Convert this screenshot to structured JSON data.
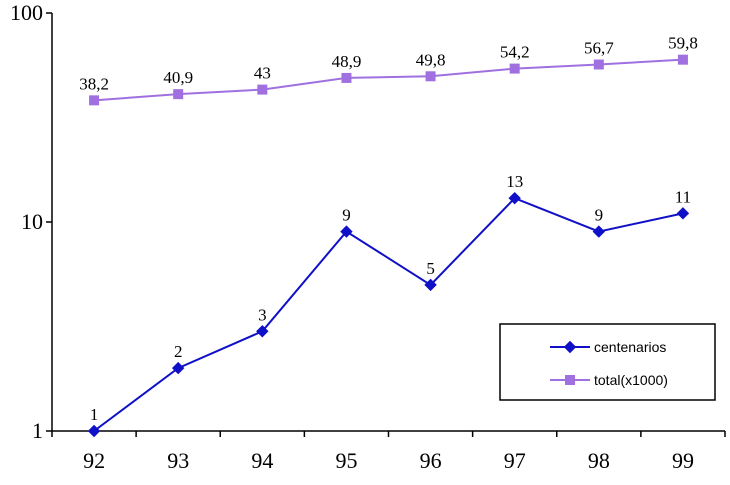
{
  "chart_data": {
    "type": "line",
    "title": "",
    "xlabel": "",
    "ylabel": "",
    "yscale": "log",
    "ylim": [
      1,
      100
    ],
    "grid": false,
    "legend_position": "bottom-right",
    "categories": [
      "92",
      "93",
      "94",
      "95",
      "96",
      "97",
      "98",
      "99"
    ],
    "y_ticks": [
      "1",
      "10",
      "100"
    ],
    "series": [
      {
        "name": "centenarios",
        "color": "#1010c8",
        "marker": "diamond",
        "values": [
          1,
          2,
          3,
          9,
          5,
          13,
          9,
          11
        ],
        "labels": [
          "1",
          "2",
          "3",
          "9",
          "5",
          "13",
          "9",
          "11"
        ]
      },
      {
        "name": "total(x1000)",
        "color": "#a070e0",
        "marker": "square",
        "values": [
          38.2,
          40.9,
          43,
          48.9,
          49.8,
          54.2,
          56.7,
          59.8
        ],
        "labels": [
          "38,2",
          "40,9",
          "43",
          "48,9",
          "49,8",
          "54,2",
          "56,7",
          "59,8"
        ]
      }
    ]
  }
}
